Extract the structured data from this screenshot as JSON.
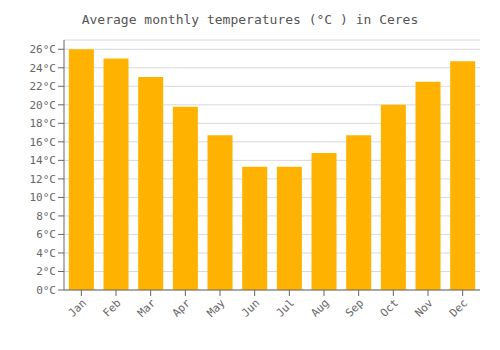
{
  "chart_data": {
    "type": "bar",
    "title": "Average monthly temperatures (°C ) in Ceres",
    "categories": [
      "Jan",
      "Feb",
      "Mar",
      "Apr",
      "May",
      "Jun",
      "Jul",
      "Aug",
      "Sep",
      "Oct",
      "Nov",
      "Dec"
    ],
    "values": [
      26,
      25,
      23,
      19.8,
      16.7,
      13.3,
      13.3,
      14.8,
      16.7,
      20,
      22.5,
      24.7
    ],
    "color": "#FFB300",
    "ylim": [
      0,
      27
    ],
    "yticks": [
      {
        "value": 0,
        "label": "0°C"
      },
      {
        "value": 2,
        "label": "2°C"
      },
      {
        "value": 4,
        "label": "4°C"
      },
      {
        "value": 6,
        "label": "6°C"
      },
      {
        "value": 8,
        "label": "8°C"
      },
      {
        "value": 10,
        "label": "10°C"
      },
      {
        "value": 12,
        "label": "12°C"
      },
      {
        "value": 14,
        "label": "14°C"
      },
      {
        "value": 16,
        "label": "16°C"
      },
      {
        "value": 18,
        "label": "18°C"
      },
      {
        "value": 20,
        "label": "20°C"
      },
      {
        "value": 22,
        "label": "22°C"
      },
      {
        "value": 24,
        "label": "24°C"
      },
      {
        "value": 26,
        "label": "26°C"
      }
    ],
    "grid": true
  }
}
